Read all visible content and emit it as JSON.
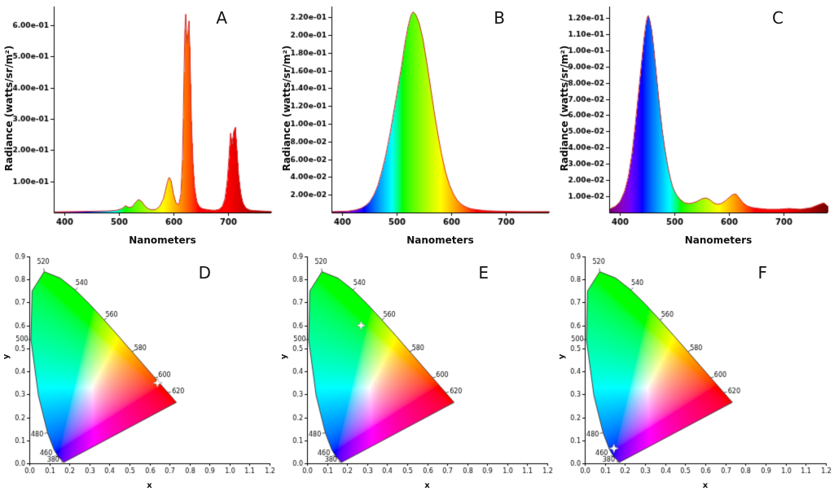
{
  "panels": [
    {
      "letter": "A",
      "xlabel": "Nanometers",
      "ylabel": "Radiance (watts/sr/m²)"
    },
    {
      "letter": "B",
      "xlabel": "Nanometers",
      "ylabel": "Radiance (watts/sr/m²)"
    },
    {
      "letter": "C",
      "xlabel": "Nanometers",
      "ylabel": "Radiance (watts/sr/m²)"
    },
    {
      "letter": "D",
      "xlabel": "x",
      "ylabel": "y"
    },
    {
      "letter": "E",
      "xlabel": "x",
      "ylabel": "y"
    },
    {
      "letter": "F",
      "xlabel": "x",
      "ylabel": "y"
    }
  ],
  "chart_data": [
    {
      "type": "area",
      "panel": "A",
      "xlabel": "Nanometers",
      "ylabel": "Radiance (watts/sr/m²)",
      "xlim": [
        380,
        780
      ],
      "ylim": [
        0,
        0.66
      ],
      "xticks": [
        400,
        500,
        600,
        700
      ],
      "yticks": [
        {
          "v": 0.1,
          "label": "1.00e-01"
        },
        {
          "v": 0.2,
          "label": "2.00e-01"
        },
        {
          "v": 0.3,
          "label": "3.00e-01"
        },
        {
          "v": 0.4,
          "label": "4.00e-01"
        },
        {
          "v": 0.5,
          "label": "5.00e-01"
        },
        {
          "v": 0.6,
          "label": "6.00e-01"
        }
      ],
      "outline_color": "#d03030",
      "points": [
        [
          380,
          0.002
        ],
        [
          420,
          0.003
        ],
        [
          450,
          0.004
        ],
        [
          480,
          0.005
        ],
        [
          495,
          0.007
        ],
        [
          505,
          0.012
        ],
        [
          512,
          0.022
        ],
        [
          518,
          0.016
        ],
        [
          524,
          0.018
        ],
        [
          530,
          0.032
        ],
        [
          536,
          0.042
        ],
        [
          542,
          0.035
        ],
        [
          548,
          0.02
        ],
        [
          554,
          0.012
        ],
        [
          560,
          0.008
        ],
        [
          568,
          0.01
        ],
        [
          575,
          0.02
        ],
        [
          582,
          0.045
        ],
        [
          588,
          0.09
        ],
        [
          592,
          0.115
        ],
        [
          596,
          0.1
        ],
        [
          600,
          0.06
        ],
        [
          605,
          0.03
        ],
        [
          610,
          0.025
        ],
        [
          614,
          0.06
        ],
        [
          617,
          0.18
        ],
        [
          619,
          0.38
        ],
        [
          621,
          0.58
        ],
        [
          623,
          0.645
        ],
        [
          625,
          0.52
        ],
        [
          627,
          0.58
        ],
        [
          629,
          0.62
        ],
        [
          631,
          0.47
        ],
        [
          633,
          0.3
        ],
        [
          636,
          0.16
        ],
        [
          639,
          0.08
        ],
        [
          643,
          0.035
        ],
        [
          648,
          0.018
        ],
        [
          654,
          0.012
        ],
        [
          660,
          0.01
        ],
        [
          668,
          0.008
        ],
        [
          676,
          0.007
        ],
        [
          684,
          0.01
        ],
        [
          690,
          0.02
        ],
        [
          695,
          0.045
        ],
        [
          699,
          0.1
        ],
        [
          702,
          0.17
        ],
        [
          705,
          0.255
        ],
        [
          708,
          0.22
        ],
        [
          711,
          0.26
        ],
        [
          714,
          0.275
        ],
        [
          717,
          0.2
        ],
        [
          720,
          0.12
        ],
        [
          724,
          0.06
        ],
        [
          728,
          0.03
        ],
        [
          733,
          0.015
        ],
        [
          740,
          0.008
        ],
        [
          750,
          0.006
        ],
        [
          762,
          0.005
        ],
        [
          775,
          0.004
        ],
        [
          780,
          0.003
        ]
      ]
    },
    {
      "type": "area",
      "panel": "B",
      "xlabel": "Nanometers",
      "ylabel": "Radiance (watts/sr/m²)",
      "xlim": [
        380,
        780
      ],
      "ylim": [
        0,
        0.232
      ],
      "xticks": [
        400,
        500,
        600,
        700
      ],
      "yticks": [
        {
          "v": 0.02,
          "label": "2.00e-02"
        },
        {
          "v": 0.04,
          "label": "4.00e-02"
        },
        {
          "v": 0.06,
          "label": "6.00e-02"
        },
        {
          "v": 0.08,
          "label": "8.00e-02"
        },
        {
          "v": 0.1,
          "label": "1.00e-01"
        },
        {
          "v": 0.12,
          "label": "1.20e-01"
        },
        {
          "v": 0.14,
          "label": "1.40e-01"
        },
        {
          "v": 0.16,
          "label": "1.60e-01"
        },
        {
          "v": 0.18,
          "label": "1.80e-01"
        },
        {
          "v": 0.2,
          "label": "2.00e-01"
        },
        {
          "v": 0.22,
          "label": "2.20e-01"
        }
      ],
      "outline_color": "#d03030",
      "points": [
        [
          380,
          0.001
        ],
        [
          410,
          0.0015
        ],
        [
          425,
          0.003
        ],
        [
          435,
          0.005
        ],
        [
          443,
          0.008
        ],
        [
          450,
          0.012
        ],
        [
          458,
          0.02
        ],
        [
          465,
          0.03
        ],
        [
          472,
          0.045
        ],
        [
          480,
          0.065
        ],
        [
          488,
          0.09
        ],
        [
          495,
          0.115
        ],
        [
          502,
          0.14
        ],
        [
          509,
          0.165
        ],
        [
          515,
          0.19
        ],
        [
          521,
          0.21
        ],
        [
          526,
          0.222
        ],
        [
          530,
          0.226
        ],
        [
          535,
          0.223
        ],
        [
          541,
          0.214
        ],
        [
          548,
          0.196
        ],
        [
          555,
          0.17
        ],
        [
          562,
          0.142
        ],
        [
          569,
          0.113
        ],
        [
          576,
          0.087
        ],
        [
          583,
          0.064
        ],
        [
          590,
          0.045
        ],
        [
          597,
          0.031
        ],
        [
          604,
          0.021
        ],
        [
          611,
          0.014
        ],
        [
          619,
          0.009
        ],
        [
          628,
          0.006
        ],
        [
          638,
          0.004
        ],
        [
          650,
          0.003
        ],
        [
          665,
          0.002
        ],
        [
          690,
          0.0015
        ],
        [
          730,
          0.001
        ],
        [
          780,
          0.001
        ]
      ]
    },
    {
      "type": "area",
      "panel": "C",
      "xlabel": "Nanometers",
      "ylabel": "Radiance (watts/sr/m²)",
      "xlim": [
        380,
        780
      ],
      "ylim": [
        0,
        0.127
      ],
      "xticks": [
        400,
        500,
        600,
        700
      ],
      "yticks": [
        {
          "v": 0.01,
          "label": "1.00e-02"
        },
        {
          "v": 0.02,
          "label": "2.00e-02"
        },
        {
          "v": 0.03,
          "label": "3.00e-02"
        },
        {
          "v": 0.04,
          "label": "4.00e-02"
        },
        {
          "v": 0.05,
          "label": "5.00e-02"
        },
        {
          "v": 0.06,
          "label": "6.00e-02"
        },
        {
          "v": 0.07,
          "label": "7.00e-02"
        },
        {
          "v": 0.08,
          "label": "8.00e-02"
        },
        {
          "v": 0.09,
          "label": "9.00e-02"
        },
        {
          "v": 0.1,
          "label": "1.00e-01"
        },
        {
          "v": 0.11,
          "label": "1.10e-01"
        },
        {
          "v": 0.12,
          "label": "1.20e-01"
        }
      ],
      "outline_color": "#d03030",
      "points": [
        [
          380,
          0.002
        ],
        [
          392,
          0.004
        ],
        [
          400,
          0.007
        ],
        [
          408,
          0.013
        ],
        [
          415,
          0.022
        ],
        [
          422,
          0.037
        ],
        [
          428,
          0.055
        ],
        [
          434,
          0.075
        ],
        [
          440,
          0.095
        ],
        [
          444,
          0.108
        ],
        [
          448,
          0.118
        ],
        [
          451,
          0.122
        ],
        [
          454,
          0.119
        ],
        [
          458,
          0.112
        ],
        [
          462,
          0.1
        ],
        [
          467,
          0.083
        ],
        [
          472,
          0.066
        ],
        [
          477,
          0.051
        ],
        [
          482,
          0.039
        ],
        [
          487,
          0.029
        ],
        [
          492,
          0.021
        ],
        [
          497,
          0.015
        ],
        [
          503,
          0.011
        ],
        [
          510,
          0.008
        ],
        [
          518,
          0.006
        ],
        [
          526,
          0.0055
        ],
        [
          534,
          0.006
        ],
        [
          542,
          0.007
        ],
        [
          550,
          0.0085
        ],
        [
          557,
          0.009
        ],
        [
          564,
          0.008
        ],
        [
          571,
          0.006
        ],
        [
          578,
          0.005
        ],
        [
          585,
          0.0055
        ],
        [
          592,
          0.007
        ],
        [
          599,
          0.009
        ],
        [
          606,
          0.011
        ],
        [
          612,
          0.0115
        ],
        [
          618,
          0.009
        ],
        [
          625,
          0.006
        ],
        [
          633,
          0.004
        ],
        [
          643,
          0.003
        ],
        [
          655,
          0.0025
        ],
        [
          670,
          0.002
        ],
        [
          690,
          0.002
        ],
        [
          710,
          0.0025
        ],
        [
          730,
          0.002
        ],
        [
          750,
          0.003
        ],
        [
          765,
          0.005
        ],
        [
          773,
          0.006
        ],
        [
          780,
          0.004
        ]
      ]
    },
    {
      "type": "cie",
      "panel": "D",
      "xlabel": "x",
      "ylabel": "y",
      "xlim": [
        0,
        1.2
      ],
      "ylim": [
        0,
        0.9
      ],
      "tick_step": 0.1,
      "marker": {
        "x": 0.64,
        "y": 0.35
      }
    },
    {
      "type": "cie",
      "panel": "E",
      "xlabel": "x",
      "ylabel": "y",
      "xlim": [
        0,
        1.2
      ],
      "ylim": [
        0,
        0.9
      ],
      "tick_step": 0.1,
      "marker": {
        "x": 0.27,
        "y": 0.6
      }
    },
    {
      "type": "cie",
      "panel": "F",
      "xlabel": "x",
      "ylabel": "y",
      "xlim": [
        0,
        1.2
      ],
      "ylim": [
        0,
        0.9
      ],
      "tick_step": 0.1,
      "marker": {
        "x": 0.145,
        "y": 0.065
      }
    }
  ],
  "cie_shared": {
    "locus": [
      [
        380,
        0.1741,
        0.005
      ],
      [
        390,
        0.1738,
        0.0049
      ],
      [
        400,
        0.1733,
        0.0048
      ],
      [
        410,
        0.1726,
        0.0048
      ],
      [
        420,
        0.1714,
        0.0051
      ],
      [
        430,
        0.1689,
        0.0069
      ],
      [
        440,
        0.1644,
        0.0109
      ],
      [
        450,
        0.1566,
        0.0177
      ],
      [
        460,
        0.144,
        0.0297
      ],
      [
        470,
        0.1241,
        0.0578
      ],
      [
        480,
        0.0913,
        0.1327
      ],
      [
        490,
        0.0454,
        0.295
      ],
      [
        500,
        0.0082,
        0.5384
      ],
      [
        510,
        0.0139,
        0.7502
      ],
      [
        520,
        0.0743,
        0.8338
      ],
      [
        530,
        0.1547,
        0.8059
      ],
      [
        540,
        0.2296,
        0.7543
      ],
      [
        550,
        0.3016,
        0.6923
      ],
      [
        560,
        0.3731,
        0.6245
      ],
      [
        570,
        0.4441,
        0.5547
      ],
      [
        580,
        0.5125,
        0.4866
      ],
      [
        590,
        0.5752,
        0.4242
      ],
      [
        600,
        0.627,
        0.3725
      ],
      [
        610,
        0.6658,
        0.334
      ],
      [
        620,
        0.6915,
        0.3083
      ],
      [
        630,
        0.7079,
        0.292
      ],
      [
        640,
        0.719,
        0.2809
      ],
      [
        650,
        0.726,
        0.274
      ],
      [
        660,
        0.73,
        0.27
      ],
      [
        670,
        0.732,
        0.268
      ],
      [
        680,
        0.7334,
        0.2666
      ],
      [
        700,
        0.7347,
        0.2653
      ]
    ],
    "wavelength_labels": [
      {
        "wl": 520,
        "dx": -0.005,
        "dy": 0.042
      },
      {
        "wl": 540,
        "dx": 0.032,
        "dy": 0.028
      },
      {
        "wl": 560,
        "dx": 0.038,
        "dy": 0.02
      },
      {
        "wl": 580,
        "dx": 0.042,
        "dy": 0.014
      },
      {
        "wl": 600,
        "dx": 0.048,
        "dy": 0.01
      },
      {
        "wl": 620,
        "dx": 0.052,
        "dy": 0.004
      },
      {
        "wl": 500,
        "dx": -0.045,
        "dy": 0.0
      },
      {
        "wl": 480,
        "dx": -0.052,
        "dy": -0.008
      },
      {
        "wl": 460,
        "dx": -0.06,
        "dy": 0.012
      },
      {
        "wl": 380,
        "dx": -0.055,
        "dy": 0.01
      }
    ]
  }
}
